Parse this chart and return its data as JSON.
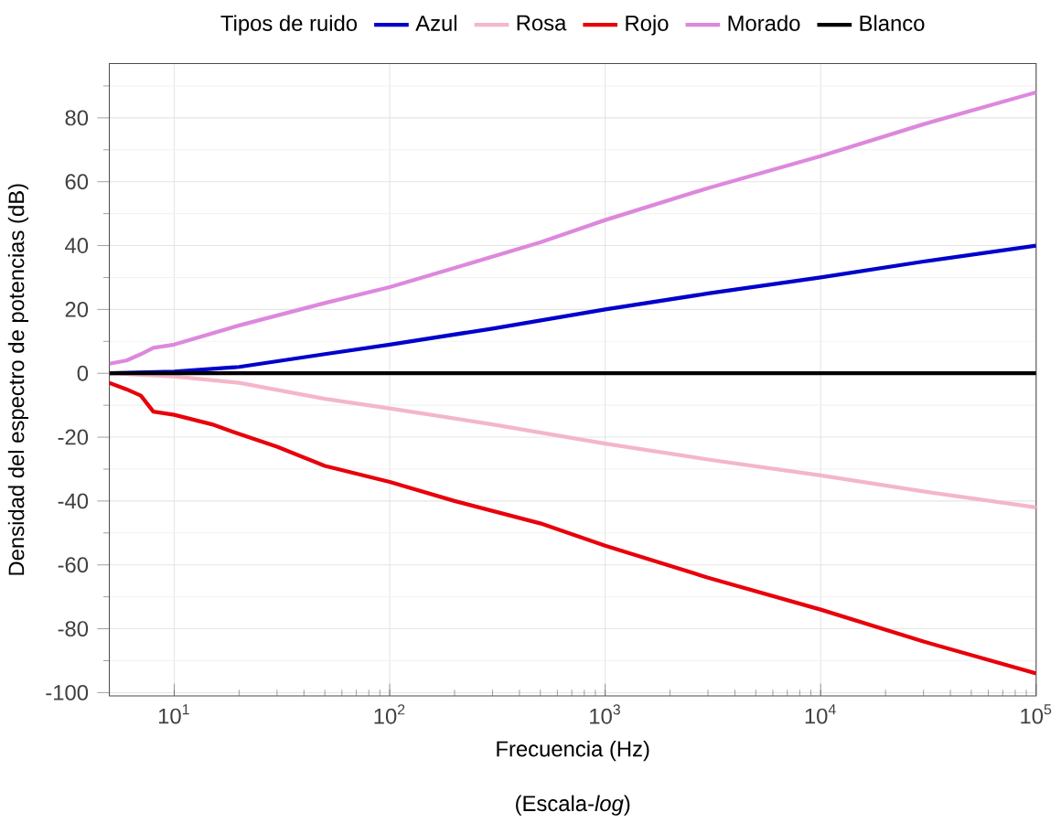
{
  "chart_data": {
    "type": "line",
    "xlabel": "Frecuencia (Hz)",
    "ylabel": "Densidad del espectro de potencias (dB)",
    "legend_title": "Tipos de ruido",
    "annotations": [
      "(Escala-*log*)"
    ],
    "log": "x",
    "grid": true,
    "legend": "top",
    "line_style": "solid",
    "marker": "none",
    "xlim": [
      5,
      100000
    ],
    "ylim": [
      -101,
      97
    ],
    "xticks": [
      {
        "value": 10,
        "label": "10$^{1}$"
      },
      {
        "value": 100,
        "label": "10$^{2}$"
      },
      {
        "value": 1000,
        "label": "10$^{3}$"
      },
      {
        "value": 10000,
        "label": "10$^{4}$"
      },
      {
        "value": 100000,
        "label": "10$^{5}$"
      }
    ],
    "yticks": [
      -100,
      -80,
      -60,
      -40,
      -20,
      0,
      20,
      40,
      60,
      80
    ],
    "series": [
      {
        "name": "Azul",
        "color": "#0000cc",
        "x": [
          5,
          10,
          20,
          50,
          100,
          300,
          1000,
          3000,
          10000,
          30000,
          100000
        ],
        "values": [
          0,
          0.5,
          2,
          6,
          9,
          14,
          20,
          25,
          30,
          35,
          40
        ]
      },
      {
        "name": "Rosa",
        "color": "#f4b6c8",
        "x": [
          5,
          10,
          20,
          50,
          100,
          300,
          1000,
          3000,
          10000,
          30000,
          100000
        ],
        "values": [
          0,
          -1,
          -3,
          -8,
          -11,
          -16,
          -22,
          -27,
          -32,
          -37,
          -42
        ]
      },
      {
        "name": "Rojo",
        "color": "#e8000b",
        "x": [
          5,
          6,
          7,
          8,
          10,
          15,
          20,
          30,
          50,
          100,
          200,
          500,
          1000,
          3000,
          10000,
          30000,
          100000
        ],
        "values": [
          -3,
          -5,
          -7,
          -12,
          -13,
          -16,
          -19,
          -23,
          -29,
          -34,
          -40,
          -47,
          -54,
          -64,
          -74,
          -84,
          -94
        ]
      },
      {
        "name": "Morado",
        "color": "#dd88dd",
        "x": [
          5,
          6,
          7,
          8,
          10,
          20,
          50,
          100,
          200,
          500,
          1000,
          3000,
          10000,
          30000,
          100000
        ],
        "values": [
          3,
          4,
          6,
          8,
          9,
          15,
          22,
          27,
          33,
          41,
          48,
          58,
          68,
          78,
          88
        ]
      },
      {
        "name": "Blanco",
        "color": "#000000",
        "x": [
          5,
          100,
          1000,
          10000,
          100000
        ],
        "values": [
          0,
          0,
          0,
          0,
          0
        ]
      }
    ]
  }
}
